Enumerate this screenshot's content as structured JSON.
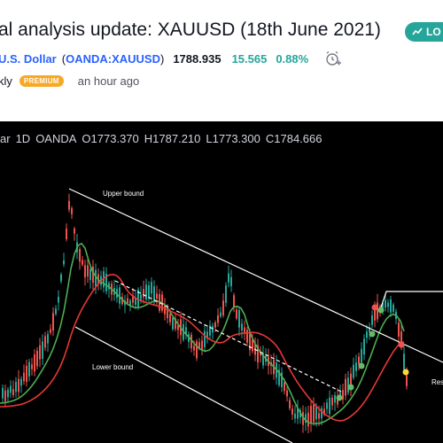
{
  "header": {
    "title": "al analysis update: XAUUSD (18th June 2021)",
    "direction_badge": "LO"
  },
  "symbol": {
    "name": "U.S. Dollar",
    "ticker_open": "(",
    "ticker": "OANDA:XAUUSD",
    "ticker_close": ")",
    "price": "1788.935",
    "change": "15.565",
    "change_pct": "0.88%"
  },
  "meta": {
    "author": "kly",
    "badge": "PREMIUM",
    "time_ago": "an hour ago"
  },
  "chart": {
    "symbol_fragment": "ar",
    "interval": "1D",
    "exchange": "OANDA",
    "ohlc": {
      "o_label": "O",
      "o": "1773.370",
      "h_label": "H",
      "h": "1787.210",
      "l_label": "L",
      "l": "1773.300",
      "c_label": "C",
      "c": "1784.666"
    },
    "annotations": {
      "upper": "Upper bound",
      "lower": "Lower bound",
      "right_label": "Res"
    },
    "colors": {
      "background": "#000000",
      "up": "#26a69a",
      "down": "#ef5350",
      "sma_fast": "#4caf50",
      "sma_slow": "#e53935",
      "trendline": "#ffffff"
    }
  }
}
